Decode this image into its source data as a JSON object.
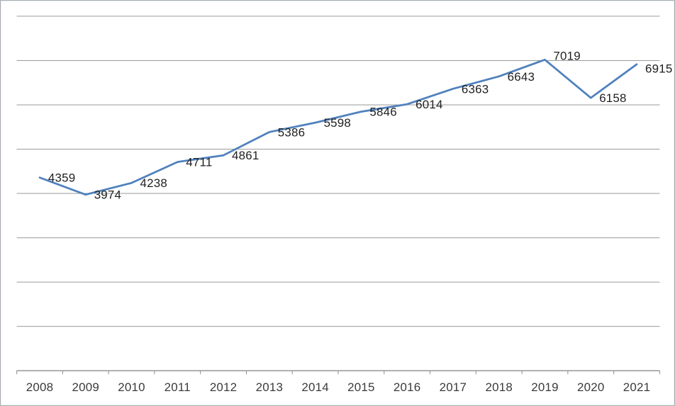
{
  "window": {
    "background": "#ffffff",
    "border_color": "#a9aeb3"
  },
  "chart_data": {
    "type": "line",
    "title": "",
    "xlabel": "",
    "ylabel": "",
    "categories": [
      "2008",
      "2009",
      "2010",
      "2011",
      "2012",
      "2013",
      "2014",
      "2015",
      "2016",
      "2017",
      "2018",
      "2019",
      "2020",
      "2021"
    ],
    "values": [
      4359,
      3974,
      4238,
      4711,
      4861,
      5386,
      5598,
      5846,
      6014,
      6363,
      6643,
      7019,
      6158,
      6915
    ],
    "ylim": [
      0,
      8000
    ],
    "y_major_unit": 1000,
    "y_axis_labels": "none",
    "gridlines": "horizontal-major",
    "legend": "none",
    "markers": "none",
    "data_labels": {
      "position": "right",
      "dy": [
        0,
        0,
        0,
        0,
        0,
        0,
        0,
        0,
        0,
        0,
        0,
        -6,
        0,
        6
      ]
    },
    "colors": {
      "line": "#4f81bd",
      "gridline": "#9a9a9a",
      "axis": "#8c8c8c",
      "data_label": "#1f1f1f",
      "axis_label": "#3a3a3a"
    }
  }
}
